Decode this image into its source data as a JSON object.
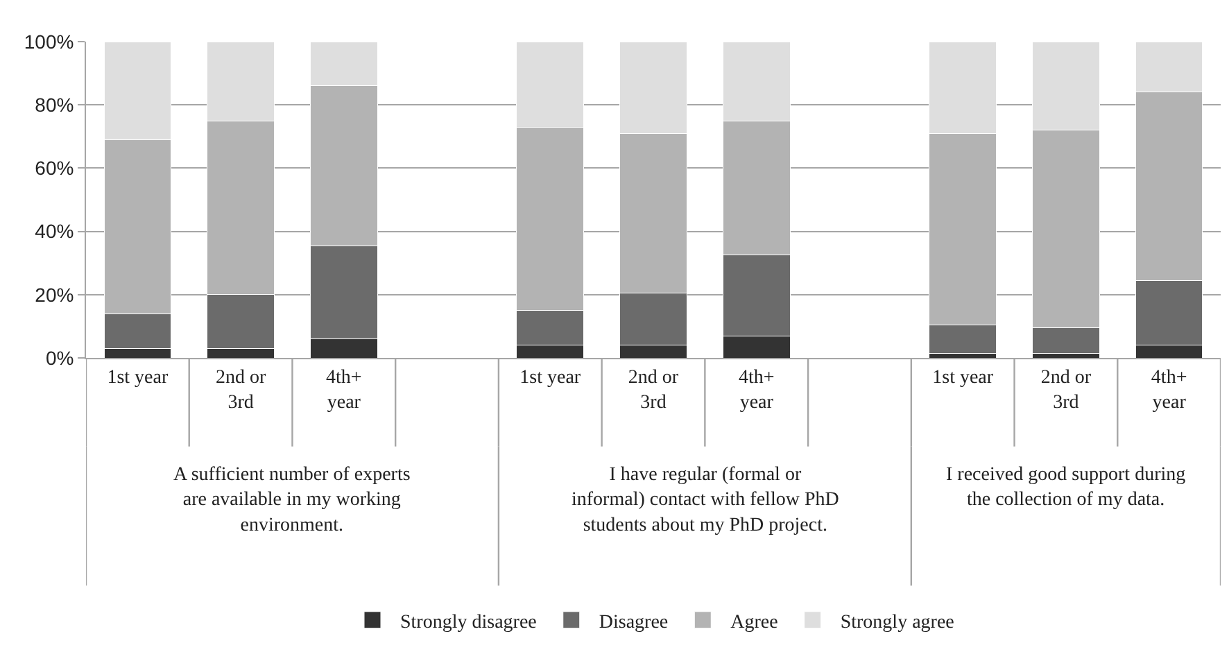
{
  "chart_data": {
    "type": "bar",
    "stacked": true,
    "categories": [
      "1st year",
      "2nd or 3rd",
      "4th+ year",
      null,
      "1st year",
      "2nd or 3rd",
      "4th+ year",
      null,
      "1st year",
      "2nd or 3rd",
      "4th+ year"
    ],
    "annotations": [
      "A sufficient number of experts are available in my working environment.",
      "I have regular (formal or informal) contact with fellow PhD students about my PhD project.",
      "I received good support during the collection of my data."
    ],
    "series": [
      {
        "name": "Strongly disagree",
        "color": "#333333",
        "values": [
          3,
          3,
          6,
          null,
          4,
          4,
          7,
          null,
          1.5,
          1.5,
          4
        ]
      },
      {
        "name": "Disagree",
        "color": "#6b6b6b",
        "values": [
          11,
          17,
          29.5,
          null,
          11,
          16.5,
          25.5,
          null,
          9,
          8,
          20.5
        ]
      },
      {
        "name": "Agree",
        "color": "#b3b3b3",
        "values": [
          55,
          55,
          50.5,
          null,
          58,
          50.5,
          42.5,
          null,
          60.5,
          62.5,
          59.5
        ]
      },
      {
        "name": "Strongly agree",
        "color": "#dedede",
        "values": [
          31,
          25,
          14,
          null,
          27,
          29,
          25,
          null,
          29,
          28,
          16
        ]
      }
    ],
    "ylim": [
      0,
      100
    ],
    "yticks": [
      {
        "value": 0,
        "label": "0%"
      },
      {
        "value": 20,
        "label": "20%"
      },
      {
        "value": 40,
        "label": "40%"
      },
      {
        "value": 60,
        "label": "60%"
      },
      {
        "value": 80,
        "label": "80%"
      },
      {
        "value": 100,
        "label": "100%"
      }
    ],
    "grid": "y",
    "legend": "bottom"
  }
}
